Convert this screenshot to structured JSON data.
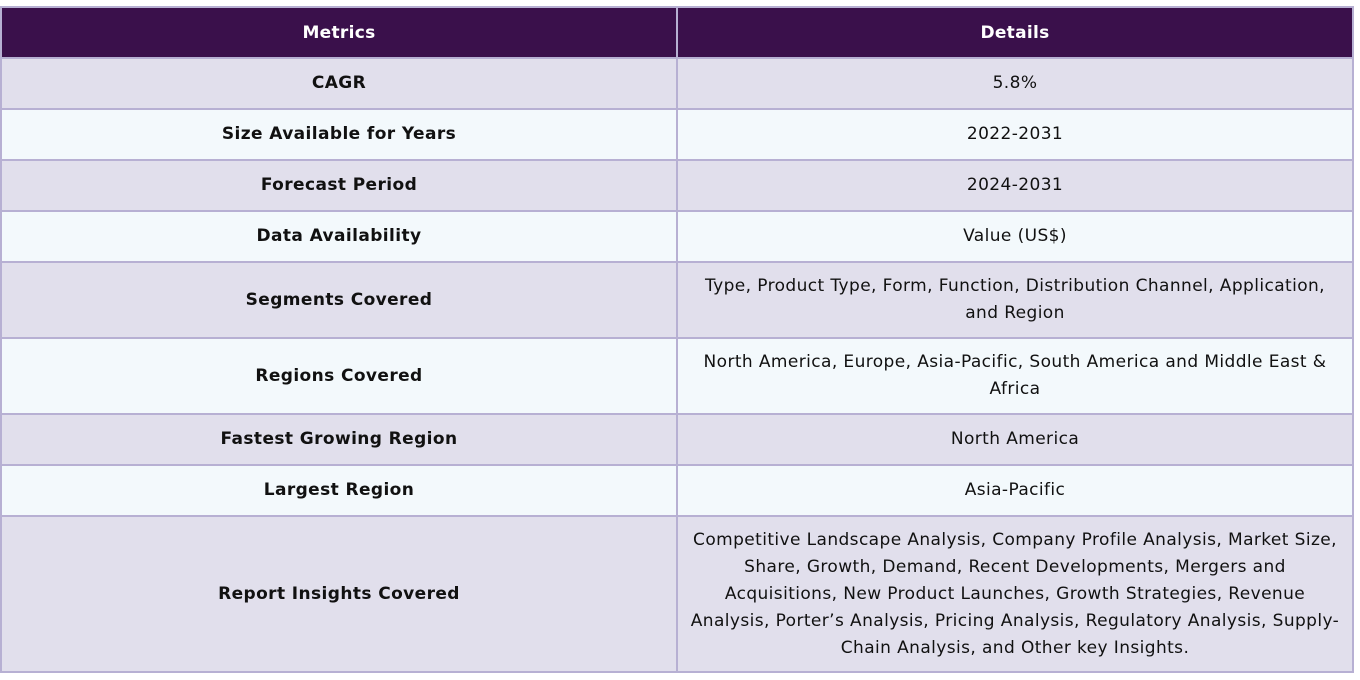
{
  "table": {
    "headers": {
      "metrics": "Metrics",
      "details": "Details"
    },
    "rows": [
      {
        "metric": "CAGR",
        "detail": "5.8%"
      },
      {
        "metric": "Size Available for Years",
        "detail": "2022-2031"
      },
      {
        "metric": "Forecast Period",
        "detail": "2024-2031"
      },
      {
        "metric": "Data Availability",
        "detail": "Value (US$)"
      },
      {
        "metric": "Segments Covered",
        "detail": "Type, Product Type, Form, Function, Distribution Channel, Application, and Region"
      },
      {
        "metric": "Regions Covered",
        "detail": "North America, Europe, Asia-Pacific, South America and Middle East & Africa"
      },
      {
        "metric": "Fastest Growing Region",
        "detail": "North America"
      },
      {
        "metric": "Largest Region",
        "detail": "Asia-Pacific"
      },
      {
        "metric": "Report Insights Covered",
        "detail": "Competitive Landscape Analysis, Company Profile Analysis, Market Size, Share, Growth, Demand, Recent Developments, Mergers and Acquisitions, New Product Launches, Growth Strategies, Revenue Analysis, Porter’s Analysis, Pricing Analysis, Regulatory Analysis, Supply-Chain Analysis, and Other key Insights."
      }
    ]
  }
}
